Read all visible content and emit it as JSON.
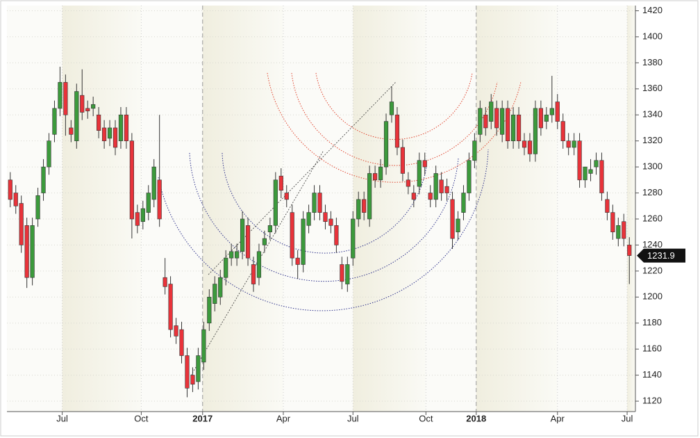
{
  "chart_data": {
    "type": "candlestick",
    "candles": {
      "open": [
        1290,
        1280,
        1272,
        1255,
        1215,
        1260,
        1280,
        1300,
        1325,
        1345,
        1365,
        1330,
        1320,
        1355,
        1345,
        1345,
        1340,
        1330,
        1322,
        1330,
        1320,
        1340,
        1320,
        1265,
        1258,
        1265,
        1275,
        1290,
        1215,
        1210,
        1178,
        1175,
        1155,
        1140,
        1135,
        1150,
        1180,
        1195,
        1200,
        1215,
        1230,
        1230,
        1235,
        1255,
        1225,
        1215,
        1240,
        1250,
        1255,
        1293,
        1280,
        1265,
        1230,
        1225,
        1255,
        1265,
        1280,
        1265,
        1260,
        1255,
        1225,
        1210,
        1230,
        1260,
        1275,
        1260,
        1295,
        1290,
        1300,
        1340,
        1340,
        1315,
        1290,
        1280,
        1285,
        1305,
        1280,
        1275,
        1290,
        1285,
        1275,
        1250,
        1265,
        1280,
        1305,
        1325,
        1340,
        1335,
        1345,
        1325,
        1345,
        1320,
        1340,
        1320,
        1320,
        1310,
        1345,
        1335,
        1340,
        1350,
        1335,
        1320,
        1315,
        1320,
        1290,
        1295,
        1300,
        1305,
        1275,
        1265,
        1245,
        1258,
        1240
      ],
      "high": [
        1296,
        1286,
        1278,
        1261,
        1261,
        1284,
        1306,
        1326,
        1351,
        1377,
        1371,
        1336,
        1364,
        1375,
        1351,
        1354,
        1346,
        1336,
        1336,
        1336,
        1346,
        1346,
        1326,
        1271,
        1274,
        1286,
        1306,
        1340,
        1230,
        1216,
        1184,
        1181,
        1161,
        1146,
        1161,
        1181,
        1206,
        1216,
        1221,
        1236,
        1241,
        1241,
        1266,
        1261,
        1231,
        1241,
        1251,
        1261,
        1296,
        1299,
        1286,
        1271,
        1236,
        1266,
        1271,
        1286,
        1286,
        1271,
        1266,
        1261,
        1231,
        1231,
        1266,
        1281,
        1281,
        1301,
        1301,
        1306,
        1341,
        1362,
        1346,
        1321,
        1296,
        1286,
        1311,
        1311,
        1286,
        1301,
        1296,
        1291,
        1281,
        1266,
        1286,
        1311,
        1326,
        1351,
        1346,
        1356,
        1351,
        1351,
        1351,
        1346,
        1346,
        1326,
        1326,
        1351,
        1351,
        1346,
        1370,
        1356,
        1341,
        1326,
        1326,
        1326,
        1296,
        1306,
        1311,
        1311,
        1281,
        1271,
        1261,
        1264,
        1246
      ],
      "low": [
        1269,
        1264,
        1234,
        1207,
        1209,
        1254,
        1274,
        1294,
        1319,
        1339,
        1324,
        1319,
        1314,
        1336,
        1337,
        1339,
        1322,
        1314,
        1316,
        1309,
        1314,
        1314,
        1245,
        1249,
        1252,
        1259,
        1269,
        1254,
        1202,
        1169,
        1164,
        1149,
        1123,
        1127,
        1129,
        1144,
        1174,
        1189,
        1194,
        1209,
        1224,
        1224,
        1229,
        1224,
        1204,
        1209,
        1234,
        1244,
        1249,
        1276,
        1269,
        1224,
        1214,
        1219,
        1249,
        1259,
        1259,
        1252,
        1249,
        1234,
        1206,
        1204,
        1224,
        1254,
        1259,
        1254,
        1284,
        1284,
        1294,
        1334,
        1309,
        1289,
        1279,
        1269,
        1279,
        1294,
        1269,
        1269,
        1274,
        1274,
        1237,
        1244,
        1259,
        1274,
        1299,
        1319,
        1324,
        1329,
        1324,
        1319,
        1314,
        1314,
        1314,
        1309,
        1304,
        1304,
        1324,
        1329,
        1334,
        1329,
        1314,
        1309,
        1309,
        1284,
        1284,
        1289,
        1294,
        1274,
        1259,
        1244,
        1239,
        1239,
        1210
      ],
      "close": [
        1275,
        1270,
        1240,
        1215,
        1255,
        1278,
        1300,
        1320,
        1345,
        1365,
        1340,
        1325,
        1358,
        1342,
        1343,
        1348,
        1328,
        1320,
        1330,
        1315,
        1340,
        1320,
        1260,
        1255,
        1268,
        1280,
        1300,
        1260,
        1208,
        1175,
        1170,
        1155,
        1130,
        1133,
        1155,
        1175,
        1200,
        1210,
        1215,
        1230,
        1235,
        1235,
        1260,
        1230,
        1210,
        1235,
        1245,
        1255,
        1290,
        1282,
        1275,
        1230,
        1225,
        1260,
        1265,
        1280,
        1265,
        1258,
        1255,
        1240,
        1212,
        1225,
        1260,
        1275,
        1265,
        1295,
        1290,
        1300,
        1335,
        1350,
        1315,
        1295,
        1285,
        1275,
        1305,
        1300,
        1275,
        1295,
        1280,
        1280,
        1245,
        1260,
        1280,
        1305,
        1320,
        1345,
        1330,
        1350,
        1330,
        1345,
        1320,
        1340,
        1320,
        1315,
        1310,
        1345,
        1330,
        1340,
        1345,
        1335,
        1320,
        1315,
        1320,
        1290,
        1300,
        1298,
        1305,
        1280,
        1265,
        1250,
        1255,
        1245,
        1231.9
      ]
    },
    "up_color": "#3c9a3c",
    "down_color": "#e8333a",
    "xlim": [
      -0.6,
      113.1
    ],
    "xticks": [
      {
        "value": 9.4,
        "label": "Jul"
      },
      {
        "value": 23.7,
        "label": "Oct"
      },
      {
        "value": 34.8,
        "label": "2017"
      },
      {
        "value": 49.4,
        "label": "Apr"
      },
      {
        "value": 62,
        "label": "Jul"
      },
      {
        "value": 75.2,
        "label": "Oct"
      },
      {
        "value": 84.3,
        "label": "2018"
      },
      {
        "value": 99,
        "label": "Apr"
      },
      {
        "value": 111.6,
        "label": "Jul"
      }
    ],
    "ylim": [
      1112,
      1424
    ],
    "yticks": [
      1120,
      1140,
      1160,
      1180,
      1200,
      1220,
      1240,
      1260,
      1280,
      1300,
      1320,
      1340,
      1360,
      1380,
      1400,
      1420
    ],
    "grid": true
  }
}
